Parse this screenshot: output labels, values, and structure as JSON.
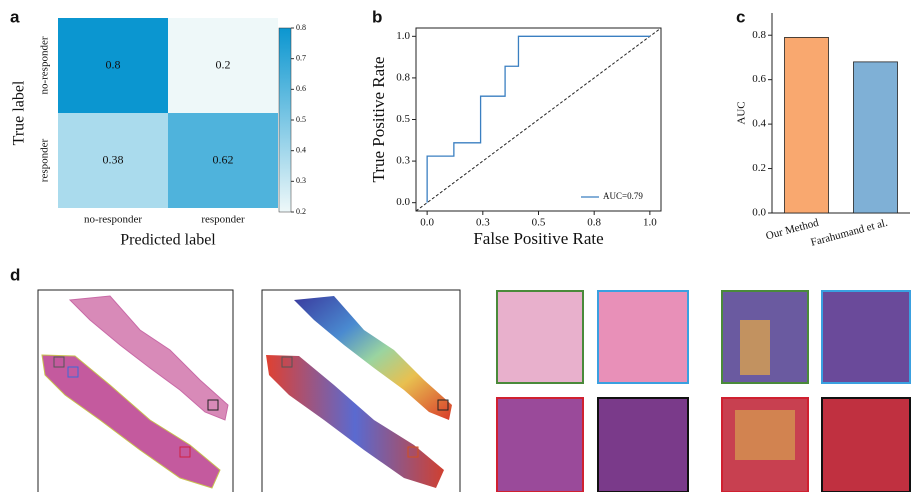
{
  "chart_data": [
    {
      "type": "heatmap",
      "panel": "a",
      "x_categories": [
        "no-responder",
        "responder"
      ],
      "y_categories": [
        "no-responder",
        "responder"
      ],
      "values": [
        [
          0.8,
          0.2
        ],
        [
          0.38,
          0.62
        ]
      ],
      "xlabel": "Predicted label",
      "ylabel": "True label",
      "clim": [
        0.2,
        0.8
      ],
      "cticks": [
        0.2,
        0.3,
        0.4,
        0.5,
        0.6,
        0.7,
        0.8
      ],
      "colormap": [
        "#eef8f9",
        "#0b96d0"
      ]
    },
    {
      "type": "line",
      "panel": "b",
      "xlabel": "False Positive Rate",
      "ylabel": "True Positive Rate",
      "x": [
        0,
        0,
        0.12,
        0.12,
        0.24,
        0.24,
        0.35,
        0.35,
        0.41,
        0.41,
        1.0
      ],
      "series": [
        {
          "name": "AUC=0.79",
          "color": "#3a7fc1",
          "values": [
            0,
            0.28,
            0.28,
            0.36,
            0.36,
            0.64,
            0.64,
            0.82,
            0.82,
            1.0,
            1.0
          ]
        }
      ],
      "xlim": [
        -0.05,
        1.05
      ],
      "ylim": [
        -0.05,
        1.05
      ],
      "xticks": [
        {
          "value": 0,
          "label": "0.0"
        },
        {
          "value": 0.25,
          "label": "0.3"
        },
        0.5,
        {
          "value": 0.75,
          "label": "0.8"
        },
        {
          "value": 1,
          "label": "1.0"
        }
      ],
      "yticks": [
        {
          "value": 0,
          "label": "0.0"
        },
        {
          "value": 0.25,
          "label": "0.3"
        },
        0.5,
        {
          "value": 0.75,
          "label": "0.8"
        },
        {
          "value": 1,
          "label": "1.0"
        }
      ],
      "diagonal": true,
      "legend": "lower right"
    },
    {
      "type": "bar",
      "panel": "c",
      "ylabel": "AUC",
      "categories": [
        "Our Method",
        "Farahumand et al."
      ],
      "values": [
        0.79,
        0.68
      ],
      "colors": [
        "#f9a86f",
        "#7fb0d6"
      ],
      "ylim": [
        0,
        0.9
      ],
      "yticks": [
        {
          "value": 0,
          "label": "0.0"
        },
        0.2,
        0.4,
        0.6,
        0.8
      ]
    }
  ],
  "panel_d": {
    "label": "d"
  }
}
